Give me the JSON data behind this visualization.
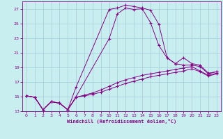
{
  "xlabel": "Windchill (Refroidissement éolien,°C)",
  "background_color": "#c8eef0",
  "line_color": "#880088",
  "grid_color": "#a0ced8",
  "xlim": [
    -0.5,
    23.5
  ],
  "ylim": [
    13,
    28
  ],
  "xticks": [
    0,
    1,
    2,
    3,
    4,
    5,
    6,
    7,
    8,
    9,
    10,
    11,
    12,
    13,
    14,
    15,
    16,
    17,
    18,
    19,
    20,
    21,
    22,
    23
  ],
  "yticks": [
    13,
    15,
    17,
    19,
    21,
    23,
    25,
    27
  ],
  "lines": [
    {
      "x": [
        0,
        1,
        2,
        3,
        4,
        5,
        6,
        10,
        11,
        12,
        13,
        14,
        15,
        16,
        17,
        18,
        19,
        20,
        21,
        22,
        23
      ],
      "y": [
        15.1,
        14.9,
        13.2,
        14.3,
        14.1,
        13.2,
        16.3,
        26.9,
        27.1,
        27.5,
        27.3,
        27.1,
        26.8,
        24.9,
        20.3,
        19.5,
        19.3,
        19.3,
        19.1,
        18.1,
        18.4
      ]
    },
    {
      "x": [
        0,
        1,
        2,
        3,
        4,
        5,
        6,
        10,
        11,
        12,
        13,
        14,
        15,
        16,
        17,
        18,
        19,
        20,
        21,
        22,
        23
      ],
      "y": [
        15.1,
        14.9,
        13.2,
        14.3,
        14.1,
        13.2,
        15.0,
        22.9,
        26.3,
        27.1,
        26.9,
        27.0,
        25.1,
        22.0,
        20.3,
        19.5,
        20.3,
        19.5,
        19.3,
        18.2,
        18.4
      ]
    },
    {
      "x": [
        0,
        1,
        2,
        3,
        4,
        5,
        6,
        7,
        8,
        9,
        10,
        11,
        12,
        13,
        14,
        15,
        16,
        17,
        18,
        19,
        20,
        21,
        22,
        23
      ],
      "y": [
        15.1,
        14.9,
        13.2,
        14.3,
        14.1,
        13.2,
        14.9,
        15.2,
        15.5,
        15.9,
        16.4,
        16.9,
        17.3,
        17.6,
        17.9,
        18.1,
        18.3,
        18.5,
        18.7,
        18.9,
        19.1,
        18.5,
        17.9,
        18.2
      ]
    },
    {
      "x": [
        0,
        1,
        2,
        3,
        4,
        5,
        6,
        7,
        8,
        9,
        10,
        11,
        12,
        13,
        14,
        15,
        16,
        17,
        18,
        19,
        20,
        21,
        22,
        23
      ],
      "y": [
        15.1,
        14.9,
        13.2,
        14.3,
        14.1,
        13.2,
        14.9,
        15.1,
        15.3,
        15.6,
        16.0,
        16.4,
        16.8,
        17.1,
        17.4,
        17.7,
        17.9,
        18.1,
        18.3,
        18.5,
        18.8,
        18.4,
        17.8,
        18.1
      ]
    }
  ]
}
